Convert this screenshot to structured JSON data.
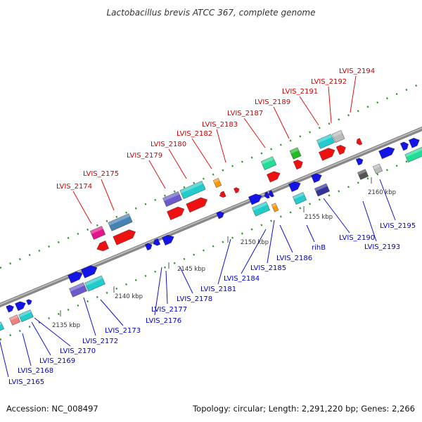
{
  "title": "Lactobacillus brevis ATCC 367, complete genome",
  "accession": "Accession: NC_008497",
  "topology": "Topology: circular; Length: 2,291,220 bp; Genes: 2,266",
  "colors": {
    "blue": "#1414e6",
    "red": "#ee1111",
    "cyan": "#22cccc",
    "steel": "#4682b4",
    "magenta": "#e6148c",
    "purple": "#6a5acd",
    "orange": "#ff9900",
    "green": "#22bb22",
    "aquamarine": "#22dd99",
    "salmon": "#f08080",
    "gray": "#bbbbbb",
    "darkgray": "#555555",
    "navy": "#333399",
    "backbone": "#888888",
    "tick": "#229922"
  },
  "scale_labels": [
    "2135 kbp",
    "2140 kbp",
    "2145 kbp",
    "2150 kbp",
    "2155 kbp",
    "2160 kbp"
  ],
  "top_labels": [
    "LVIS_2174",
    "LVIS_2175",
    "LVIS_2179",
    "LVIS_2180",
    "LVIS_2182",
    "LVIS_2183",
    "LVIS_2187",
    "LVIS_2189",
    "LVIS_2191",
    "LVIS_2192",
    "LVIS_2194"
  ],
  "bottom_labels": [
    "LVIS_2165",
    "LVIS_2168",
    "LVIS_2169",
    "LVIS_2170",
    "LVIS_2172",
    "LVIS_2173",
    "LVIS_2176",
    "LVIS_2177",
    "LVIS_2178",
    "LVIS_2181",
    "LVIS_2184",
    "LVIS_2185",
    "LVIS_2186",
    "rihB",
    "LVIS_2190",
    "LVIS_2193",
    "LVIS_2195"
  ]
}
